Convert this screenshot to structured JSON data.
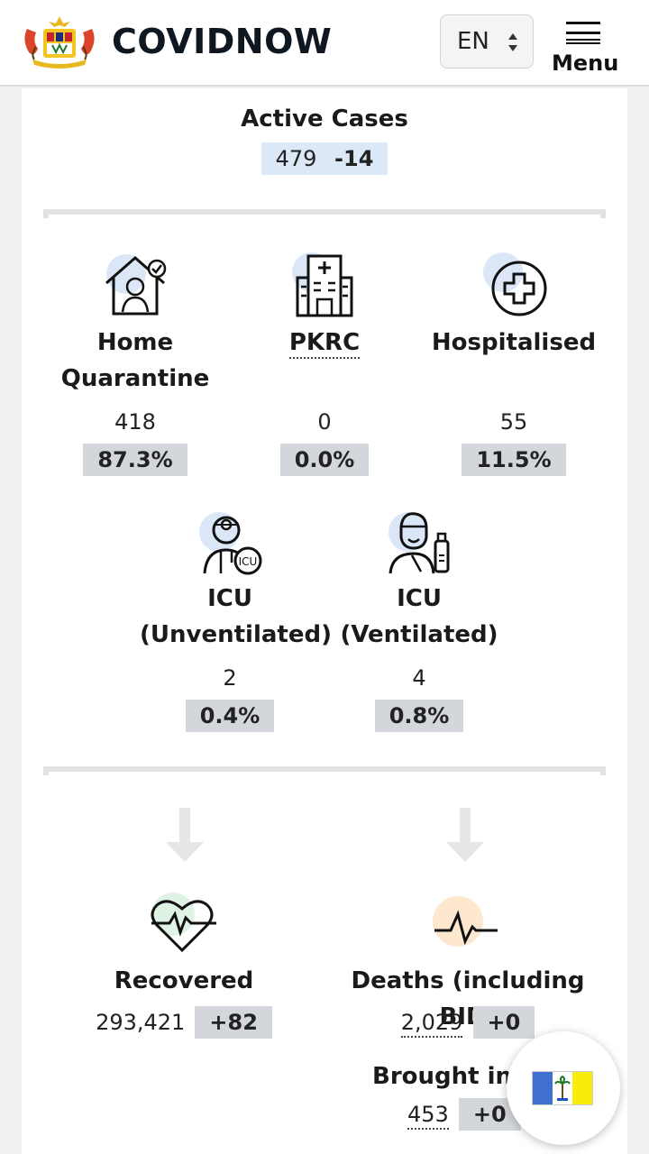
{
  "header": {
    "brand": "COVIDNOW",
    "language": "EN",
    "menu_label": "Menu"
  },
  "active_cases": {
    "title": "Active Cases",
    "value": "479",
    "change": "-14"
  },
  "categories": [
    {
      "title_line1": "Home",
      "title_line2": "Quarantine",
      "value": "418",
      "percent": "87.3%",
      "icon": "home-quarantine-icon"
    },
    {
      "title_line1": "PKRC",
      "title_line2": "",
      "value": "0",
      "percent": "0.0%",
      "icon": "hospital-building-icon"
    },
    {
      "title_line1": "Hospitalised",
      "title_line2": "",
      "value": "55",
      "percent": "11.5%",
      "icon": "medical-cross-icon"
    },
    {
      "title_line1": "ICU",
      "title_line2": "(Unventilated)",
      "value": "2",
      "percent": "0.4%",
      "icon": "icu-doctor-icon"
    },
    {
      "title_line1": "ICU",
      "title_line2": "(Ventilated)",
      "value": "4",
      "percent": "0.8%",
      "icon": "ventilator-patient-icon"
    }
  ],
  "outcomes": {
    "recovered": {
      "title": "Recovered",
      "value": "293,421",
      "change": "+82",
      "icon": "heart-pulse-icon"
    },
    "deaths": {
      "title": "Deaths (including BID)",
      "value": "2,029",
      "change": "+0",
      "icon": "flatline-pulse-icon"
    },
    "bid": {
      "title": "Brought in D",
      "value": "453",
      "change": "+0"
    }
  },
  "colors": {
    "pill_gray": "#d3d6db",
    "pill_blue": "#dce8f6",
    "icon_blue_bg": "#dbe7f7",
    "icon_green_bg": "#dff3e4",
    "icon_orange_bg": "#fde8cf",
    "flag_blue": "#3f6fd1",
    "flag_yellow": "#f7ec0a"
  },
  "state_flag_icon": "penang-flag-icon"
}
